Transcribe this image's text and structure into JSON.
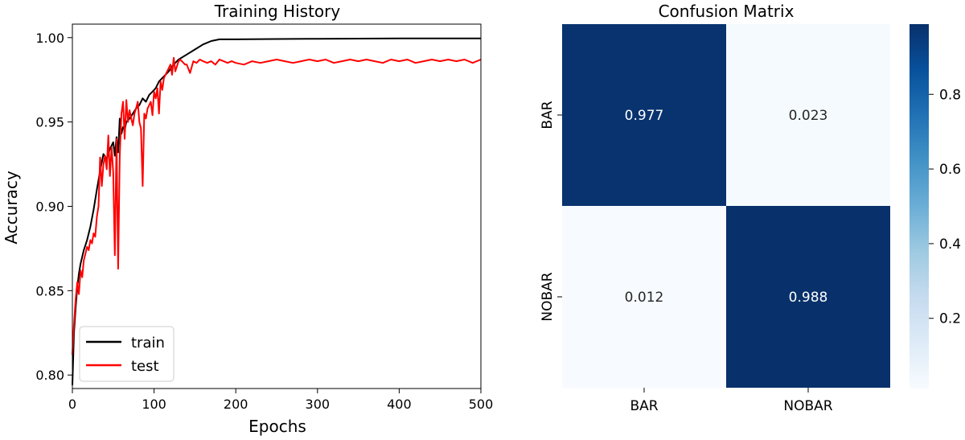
{
  "chart_data": [
    {
      "type": "line",
      "title": "Training History",
      "xlabel": "Epochs",
      "ylabel": "Accuracy",
      "xlim": [
        0,
        500
      ],
      "ylim": [
        0.792,
        1.008
      ],
      "xticks": [
        0,
        100,
        200,
        300,
        400,
        500
      ],
      "xtick_labels": [
        "0",
        "100",
        "200",
        "300",
        "400",
        "500"
      ],
      "yticks": [
        0.8,
        0.85,
        0.9,
        0.95,
        1.0
      ],
      "ytick_labels": [
        "0.80",
        "0.85",
        "0.90",
        "0.95",
        "1.00"
      ],
      "grid": false,
      "legend": "lower-left",
      "series": [
        {
          "name": "train",
          "color": "#000000",
          "x": [
            0,
            2,
            4,
            6,
            8,
            10,
            14,
            18,
            22,
            26,
            30,
            34,
            38,
            42,
            46,
            50,
            52,
            54,
            56,
            58,
            60,
            62,
            64,
            66,
            70,
            74,
            78,
            82,
            86,
            90,
            94,
            98,
            102,
            106,
            110,
            114,
            118,
            122,
            126,
            130,
            140,
            150,
            160,
            170,
            180,
            200,
            250,
            300,
            350,
            400,
            450,
            500
          ],
          "y": [
            0.794,
            0.825,
            0.84,
            0.852,
            0.86,
            0.866,
            0.874,
            0.88,
            0.888,
            0.898,
            0.91,
            0.921,
            0.931,
            0.928,
            0.934,
            0.938,
            0.93,
            0.941,
            0.932,
            0.952,
            0.943,
            0.947,
            0.945,
            0.95,
            0.952,
            0.955,
            0.958,
            0.96,
            0.964,
            0.962,
            0.966,
            0.968,
            0.97,
            0.974,
            0.976,
            0.978,
            0.98,
            0.983,
            0.985,
            0.987,
            0.99,
            0.993,
            0.996,
            0.998,
            0.999,
            0.999,
            0.9992,
            0.9993,
            0.9994,
            0.9995,
            0.9995,
            0.9995
          ]
        },
        {
          "name": "test",
          "color": "#ff0000",
          "x": [
            0,
            2,
            4,
            6,
            8,
            10,
            12,
            14,
            16,
            18,
            20,
            22,
            24,
            26,
            28,
            30,
            32,
            34,
            36,
            38,
            40,
            42,
            44,
            46,
            48,
            50,
            52,
            54,
            56,
            58,
            60,
            62,
            64,
            66,
            68,
            70,
            72,
            74,
            76,
            78,
            80,
            82,
            84,
            86,
            88,
            90,
            92,
            94,
            96,
            98,
            100,
            102,
            104,
            106,
            108,
            110,
            112,
            114,
            116,
            118,
            120,
            122,
            124,
            126,
            128,
            130,
            132,
            134,
            136,
            138,
            140,
            144,
            148,
            152,
            156,
            160,
            165,
            170,
            175,
            180,
            185,
            190,
            195,
            200,
            210,
            220,
            230,
            240,
            250,
            260,
            270,
            280,
            290,
            300,
            310,
            320,
            330,
            340,
            350,
            360,
            370,
            380,
            390,
            400,
            410,
            420,
            430,
            440,
            450,
            460,
            470,
            480,
            490,
            500
          ],
          "y": [
            0.812,
            0.83,
            0.845,
            0.855,
            0.848,
            0.862,
            0.858,
            0.868,
            0.872,
            0.876,
            0.874,
            0.88,
            0.878,
            0.884,
            0.882,
            0.894,
            0.9,
            0.929,
            0.912,
            0.925,
            0.93,
            0.922,
            0.942,
            0.918,
            0.935,
            0.92,
            0.871,
            0.94,
            0.863,
            0.93,
            0.955,
            0.962,
            0.94,
            0.963,
            0.95,
            0.957,
            0.952,
            0.948,
            0.955,
            0.958,
            0.962,
            0.95,
            0.946,
            0.912,
            0.955,
            0.952,
            0.958,
            0.96,
            0.962,
            0.954,
            0.968,
            0.964,
            0.97,
            0.955,
            0.974,
            0.969,
            0.976,
            0.978,
            0.98,
            0.982,
            0.984,
            0.978,
            0.988,
            0.98,
            0.983,
            0.986,
            0.987,
            0.986,
            0.985,
            0.984,
            0.984,
            0.979,
            0.986,
            0.985,
            0.987,
            0.986,
            0.985,
            0.986,
            0.984,
            0.987,
            0.986,
            0.985,
            0.986,
            0.985,
            0.984,
            0.986,
            0.985,
            0.986,
            0.987,
            0.986,
            0.985,
            0.986,
            0.987,
            0.986,
            0.987,
            0.985,
            0.986,
            0.987,
            0.986,
            0.987,
            0.986,
            0.985,
            0.987,
            0.986,
            0.987,
            0.985,
            0.986,
            0.987,
            0.986,
            0.987,
            0.986,
            0.987,
            0.985,
            0.987
          ]
        }
      ]
    },
    {
      "type": "heatmap",
      "title": "Confusion Matrix",
      "rows": [
        "BAR",
        "NOBAR"
      ],
      "columns": [
        "BAR",
        "NOBAR"
      ],
      "values": [
        [
          0.977,
          0.023
        ],
        [
          0.012,
          0.988
        ]
      ],
      "value_labels": [
        [
          "0.977",
          "0.023"
        ],
        [
          "0.012",
          "0.988"
        ]
      ],
      "colormap": "Blues",
      "colormap_stops": [
        "#f7fbff",
        "#deebf7",
        "#c6dbef",
        "#9ecae1",
        "#6baed6",
        "#4292c6",
        "#2171b5",
        "#08519c",
        "#08306b"
      ],
      "vmin": 0.012,
      "vmax": 0.988,
      "colorbar_ticks": [
        0.2,
        0.4,
        0.6,
        0.8
      ],
      "colorbar_tick_labels": [
        "0.2",
        "0.4",
        "0.6",
        "0.8"
      ]
    }
  ]
}
